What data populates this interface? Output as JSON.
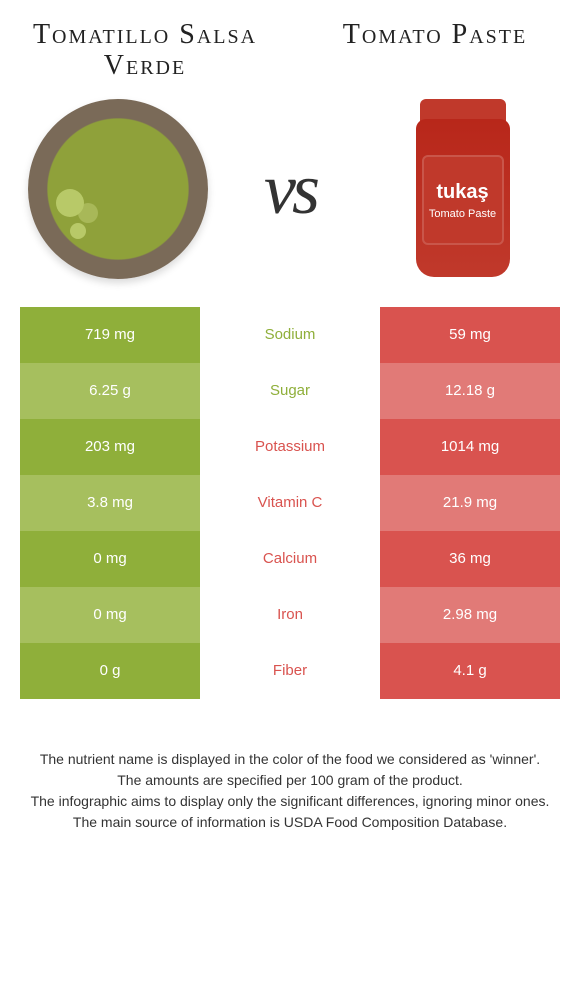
{
  "leftFood": {
    "title": "Tomatillo Salsa Verde",
    "color": "#8faf3a",
    "colorAlt": "#a6bf5e"
  },
  "rightFood": {
    "title": "Tomato Paste",
    "color": "#d9534f",
    "colorAlt": "#e17a77",
    "brand": "tukaş",
    "product": "Tomato Paste"
  },
  "vs": "vs",
  "nutrients": [
    {
      "name": "Sodium",
      "left": "719 mg",
      "right": "59 mg",
      "winner": "left"
    },
    {
      "name": "Sugar",
      "left": "6.25 g",
      "right": "12.18 g",
      "winner": "left"
    },
    {
      "name": "Potassium",
      "left": "203 mg",
      "right": "1014 mg",
      "winner": "right"
    },
    {
      "name": "Vitamin C",
      "left": "3.8 mg",
      "right": "21.9 mg",
      "winner": "right"
    },
    {
      "name": "Calcium",
      "left": "0 mg",
      "right": "36 mg",
      "winner": "right"
    },
    {
      "name": "Iron",
      "left": "0 mg",
      "right": "2.98 mg",
      "winner": "right"
    },
    {
      "name": "Fiber",
      "left": "0 g",
      "right": "4.1 g",
      "winner": "right"
    }
  ],
  "footer": {
    "l1": "The nutrient name is displayed in the color of the food we considered as 'winner'.",
    "l2": "The amounts are specified per 100 gram of the product.",
    "l3": "The infographic aims to display only the significant differences, ignoring minor ones.",
    "l4": "The main source of information is USDA Food Composition Database."
  }
}
